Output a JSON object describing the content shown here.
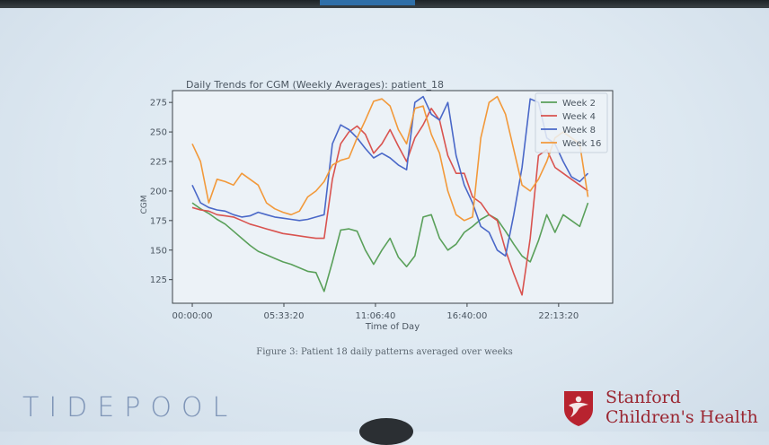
{
  "slide": {
    "caption": "Figure 3: Patient 18 daily patterns averaged over weeks",
    "footer_left_logo": "TIDEPOOL",
    "footer_right_logo": [
      "Stanford",
      "Children's Health"
    ]
  },
  "chart_data": {
    "type": "line",
    "title": "Daily Trends for CGM (Weekly Averages):  patient_18",
    "xlabel": "Time of Day",
    "ylabel": "CGM",
    "x_tick_labels": [
      "00:00:00",
      "05:33:20",
      "11:06:40",
      "16:40:00",
      "22:13:20"
    ],
    "x_tick_hours": [
      0,
      5.556,
      11.111,
      16.667,
      22.222
    ],
    "xlim_hours": [
      -1.2,
      25.5
    ],
    "y_ticks": [
      125,
      150,
      175,
      200,
      225,
      250,
      275
    ],
    "ylim": [
      105,
      285
    ],
    "legend_position": "top-right",
    "x_hours": [
      0,
      0.5,
      1,
      1.5,
      2,
      2.5,
      3,
      3.5,
      4,
      4.5,
      5,
      5.5,
      6,
      6.5,
      7,
      7.5,
      8,
      8.5,
      9,
      9.5,
      10,
      10.5,
      11,
      11.5,
      12,
      12.5,
      13,
      13.5,
      14,
      14.5,
      15,
      15.5,
      16,
      16.5,
      17,
      17.5,
      18,
      18.5,
      19,
      19.5,
      20,
      20.5,
      21,
      21.5,
      22,
      22.5,
      23,
      23.5,
      24
    ],
    "series": [
      {
        "name": "Week 2",
        "color": "#5aa05a",
        "values": [
          190,
          185,
          181,
          176,
          172,
          166,
          160,
          154,
          149,
          146,
          143,
          140,
          138,
          135,
          132,
          131,
          115,
          140,
          167,
          168,
          166,
          150,
          138,
          150,
          160,
          144,
          136,
          145,
          178,
          180,
          160,
          150,
          155,
          165,
          170,
          176,
          180,
          176,
          166,
          155,
          145,
          140,
          158,
          180,
          165,
          180,
          175,
          170,
          190
        ]
      },
      {
        "name": "Week 4",
        "color": "#d9534f",
        "values": [
          186,
          184,
          183,
          180,
          179,
          178,
          175,
          172,
          170,
          168,
          166,
          164,
          163,
          162,
          161,
          160,
          160,
          210,
          240,
          250,
          255,
          248,
          232,
          240,
          252,
          238,
          225,
          245,
          256,
          270,
          260,
          230,
          215,
          215,
          195,
          190,
          180,
          175,
          150,
          130,
          112,
          160,
          230,
          235,
          220,
          215,
          210,
          205,
          200
        ]
      },
      {
        "name": "Week 8",
        "color": "#4a68c8",
        "values": [
          205,
          190,
          186,
          184,
          183,
          180,
          178,
          179,
          182,
          180,
          178,
          177,
          176,
          175,
          176,
          178,
          180,
          240,
          256,
          252,
          245,
          236,
          228,
          232,
          228,
          222,
          218,
          275,
          280,
          265,
          260,
          275,
          230,
          205,
          190,
          170,
          165,
          150,
          145,
          180,
          220,
          278,
          275,
          245,
          240,
          225,
          212,
          208,
          215
        ]
      },
      {
        "name": "Week 16",
        "color": "#f2993a",
        "values": [
          240,
          225,
          190,
          210,
          208,
          205,
          215,
          210,
          205,
          190,
          185,
          182,
          180,
          183,
          195,
          200,
          208,
          222,
          226,
          228,
          245,
          260,
          276,
          278,
          272,
          252,
          240,
          270,
          272,
          248,
          232,
          200,
          180,
          175,
          178,
          245,
          275,
          280,
          265,
          235,
          205,
          200,
          210,
          225,
          245,
          250,
          245,
          240,
          195
        ]
      }
    ]
  }
}
